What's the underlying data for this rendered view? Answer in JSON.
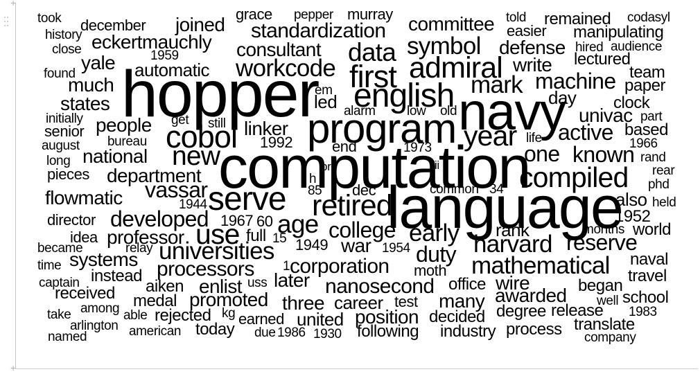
{
  "words": [
    "hopper",
    "computation",
    "language",
    "navy",
    "program",
    "english",
    "cobol",
    "retired",
    "serve",
    "first",
    "admiral",
    "new",
    "year",
    "compiled",
    "universities",
    "mathematical",
    "data",
    "workcode",
    "age",
    "use",
    "vassar",
    "developed",
    "harvard",
    "reserve",
    "machine",
    "college",
    "early",
    "duty",
    "corporation",
    "symbol",
    "standardization",
    "processors",
    "nanosecond",
    "one",
    "known",
    "active",
    "mark",
    "consultant",
    "department",
    "eckertmauchly",
    "national",
    "automatic",
    "people",
    "flowmatic",
    "systems",
    "professor",
    "committee",
    "joined",
    "war",
    "later",
    "linker",
    "defense",
    "write",
    "univac",
    "many",
    "wire",
    "awarded",
    "promoted",
    "career",
    "position",
    "united",
    "three",
    "enlist",
    "much",
    "states",
    "yale",
    "also",
    "rank",
    "1952",
    "world",
    "naval",
    "travel",
    "school",
    "began",
    "translate",
    "process",
    "industry",
    "following",
    "decided",
    "degree",
    "release",
    "company",
    "medal",
    "aiken",
    "instead",
    "received",
    "rejected",
    "today",
    "american",
    "arlington",
    "named",
    "take",
    "among",
    "able",
    "earned",
    "due",
    "1986",
    "1930",
    "test",
    "office",
    "moth",
    "1954",
    "1949",
    "15",
    "full",
    "60",
    "1967",
    "director",
    "idea",
    "1944",
    "85",
    "dec",
    "common",
    "34",
    "1992",
    "end",
    "1973",
    "life",
    "based",
    "1966",
    "rand",
    "rear",
    "phd",
    "held",
    "months",
    "clock",
    "part",
    "day",
    "team",
    "paper",
    "lectured",
    "audience",
    "hired",
    "manipulating",
    "easier",
    "told",
    "remained",
    "codasyl",
    "grace",
    "pepper",
    "murray",
    "took",
    "december",
    "history",
    "close",
    "1959",
    "found",
    "initially",
    "senior",
    "august",
    "long",
    "pieces",
    "bureau",
    "get",
    "still",
    "em",
    "led",
    "alarm",
    "low",
    "old",
    "became",
    "relay",
    "time",
    "captain",
    "uss",
    "kg",
    "1983",
    "well",
    "1",
    "h",
    "il",
    "pr",
    "ii"
  ]
}
